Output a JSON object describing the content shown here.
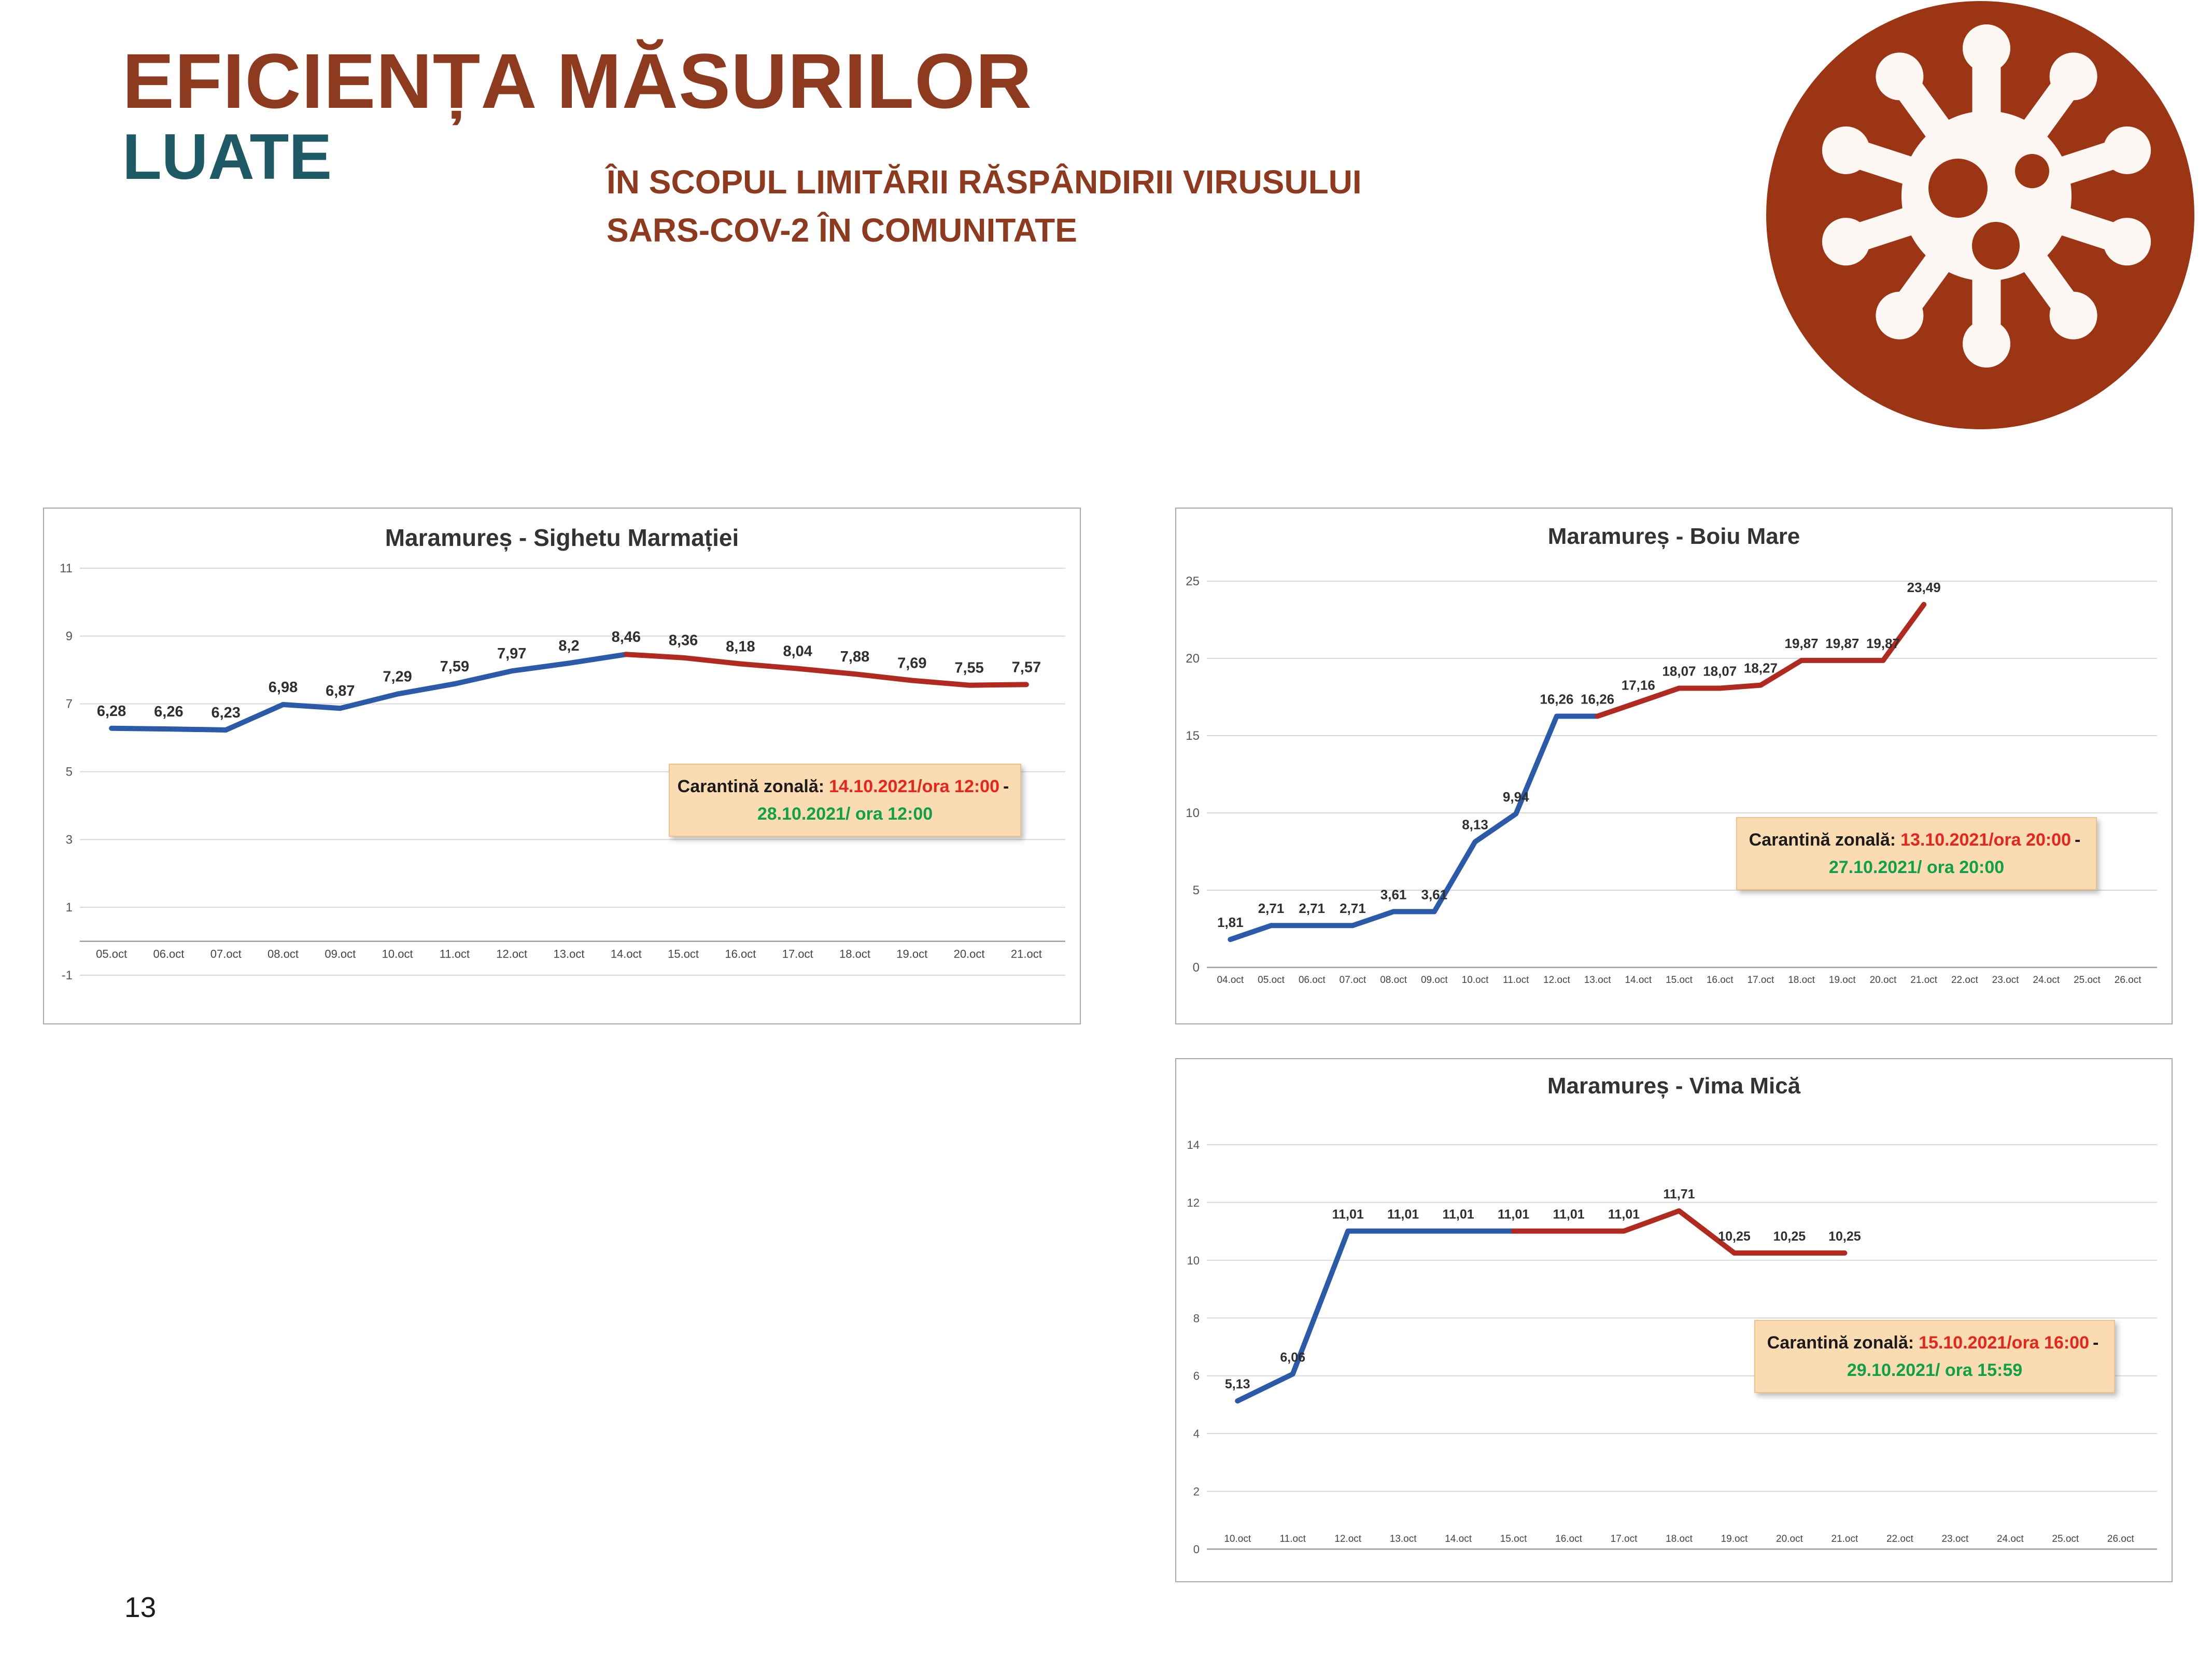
{
  "header": {
    "title_line1": "EFICIENȚA MĂSURILOR",
    "title_line2": "LUATE",
    "subtitle_line1": "ÎN SCOPUL LIMITĂRII RĂSPÂNDIRII VIRUSULUI",
    "subtitle_line2": "SARS-COV-2 ÎN COMUNITATE"
  },
  "page_number": "13",
  "colors": {
    "title_brown": "#8E3A1F",
    "title_teal": "#1D5A66",
    "line_blue": "#2B5AA9",
    "line_red": "#B02A20",
    "annotation_bg": "#FBDCB2",
    "annotation_red": "#E8251C",
    "annotation_green": "#0FA04A",
    "virus_circle": "#9B3514",
    "gridline": "#d8d8d8"
  },
  "chart_data": [
    {
      "type": "line",
      "title": "Maramureș - Sighetu Marmației",
      "categories": [
        "05.oct",
        "06.oct",
        "07.oct",
        "08.oct",
        "09.oct",
        "10.oct",
        "11.oct",
        "12.oct",
        "13.oct",
        "14.oct",
        "15.oct",
        "16.oct",
        "17.oct",
        "18.oct",
        "19.oct",
        "20.oct",
        "21.oct"
      ],
      "yticks": [
        11,
        9,
        7,
        5,
        3,
        1,
        -1
      ],
      "values": [
        6.28,
        6.26,
        6.23,
        6.98,
        6.87,
        7.29,
        7.59,
        7.97,
        8.2,
        8.46,
        8.36,
        8.18,
        8.04,
        7.88,
        7.69,
        7.55,
        7.57
      ],
      "point_labels": [
        "6,28",
        "6,26",
        "6,23",
        "6,98",
        "6,87",
        "7,29",
        "7,59",
        "7,97",
        "8,2",
        "8,46",
        "8,36",
        "8,18",
        "8,04",
        "7,88",
        "7,69",
        "7,55",
        "7,57"
      ],
      "split_index": 9,
      "legend": "none",
      "grid": "on",
      "annotation": {
        "label": "Carantină zonală:",
        "start": "14.10.2021/ora 12:00",
        "sep": "-",
        "end": "28.10.2021/ ora 12:00"
      }
    },
    {
      "type": "line",
      "title": "Maramureș - Boiu Mare",
      "categories": [
        "04.oct",
        "05.oct",
        "06.oct",
        "07.oct",
        "08.oct",
        "09.oct",
        "10.oct",
        "11.oct",
        "12.oct",
        "13.oct",
        "14.oct",
        "15.oct",
        "16.oct",
        "17.oct",
        "18.oct",
        "19.oct",
        "20.oct",
        "21.oct",
        "22.oct",
        "23.oct",
        "24.oct",
        "25.oct",
        "26.oct"
      ],
      "yticks": [
        25,
        20,
        15,
        10,
        5,
        0
      ],
      "values": [
        1.81,
        2.71,
        2.71,
        2.71,
        3.61,
        3.61,
        8.13,
        9.94,
        16.26,
        16.26,
        17.16,
        18.07,
        18.07,
        18.27,
        19.87,
        19.87,
        19.87,
        23.49
      ],
      "point_labels": [
        "1,81",
        "2,71",
        "2,71",
        "2,71",
        "3,61",
        "3,61",
        "8,13",
        "9,94",
        "16,26",
        "16,26",
        "17,16",
        "18,07",
        "18,07",
        "18,27",
        "19,87",
        "19,87",
        "19,87",
        "23,49"
      ],
      "split_index": 9,
      "legend": "none",
      "grid": "on",
      "annotation": {
        "label": "Carantină zonală:",
        "start": "13.10.2021/ora 20:00",
        "sep": "-",
        "end": "27.10.2021/ ora 20:00"
      }
    },
    {
      "type": "line",
      "title": "Maramureș - Vima Mică",
      "categories": [
        "10.oct",
        "11.oct",
        "12.oct",
        "13.oct",
        "14.oct",
        "15.oct",
        "16.oct",
        "17.oct",
        "18.oct",
        "19.oct",
        "20.oct",
        "21.oct",
        "22.oct",
        "23.oct",
        "24.oct",
        "25.oct",
        "26.oct"
      ],
      "yticks": [
        14,
        12,
        10,
        8,
        6,
        4,
        2,
        0
      ],
      "values": [
        5.13,
        6.06,
        11.01,
        11.01,
        11.01,
        11.01,
        11.01,
        11.01,
        11.71,
        10.25,
        10.25,
        10.25
      ],
      "point_labels": [
        "5,13",
        "6,06",
        "11,01",
        "11,01",
        "11,01",
        "11,01",
        "11,01",
        "11,01",
        "11,71",
        "10,25",
        "10,25",
        "10,25"
      ],
      "split_index": 5,
      "legend": "none",
      "grid": "on",
      "annotation": {
        "label": "Carantină zonală:",
        "start": "15.10.2021/ora 16:00",
        "sep": "-",
        "end": "29.10.2021/ ora 15:59"
      }
    }
  ]
}
